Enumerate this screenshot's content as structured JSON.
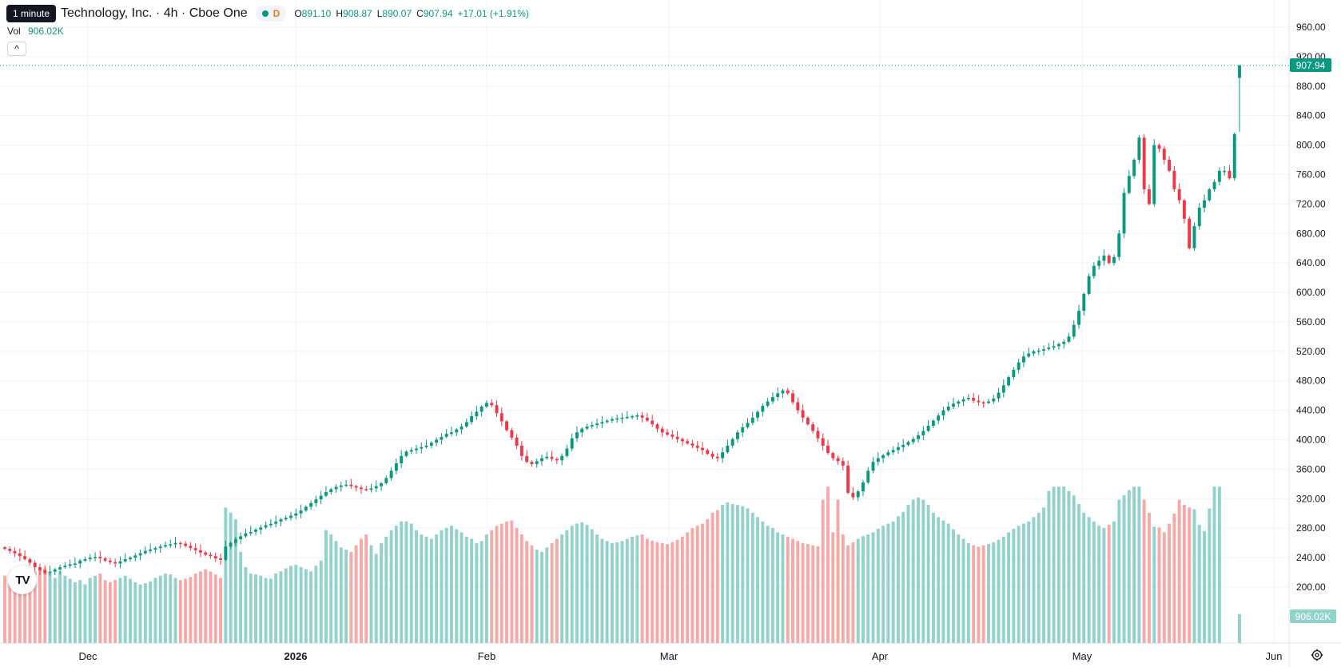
{
  "header": {
    "tooltip": "1 minute",
    "symbol_title": "Technology, Inc. · 4h · Cboe One",
    "delay_badge": "D",
    "ohlc": {
      "o_label": "O",
      "o_value": "891.10",
      "h_label": "H",
      "h_value": "908.87",
      "l_label": "L",
      "l_value": "890.07",
      "c_label": "C",
      "c_value": "907.94",
      "change": "+17.01 (+1.91%)"
    }
  },
  "volume_legend": {
    "label": "Vol",
    "value": "906.02K"
  },
  "buttons": {
    "collapse_glyph": "^"
  },
  "logo": {
    "text": "TV"
  },
  "icons": {
    "settings": "gear-icon",
    "collapse": "chevron-up-icon"
  },
  "chart_data": {
    "type": "candlestick",
    "price_axis": {
      "ticks": [
        "960.00",
        "920.00",
        "880.00",
        "840.00",
        "800.00",
        "760.00",
        "720.00",
        "680.00",
        "640.00",
        "600.00",
        "560.00",
        "520.00",
        "480.00",
        "440.00",
        "400.00",
        "360.00",
        "320.00",
        "280.00",
        "240.00",
        "200.00"
      ],
      "range": [
        190,
        985
      ]
    },
    "time_axis": {
      "labels": [
        "Dec",
        "2026",
        "Feb",
        "Mar",
        "Apr",
        "May",
        "Jun"
      ]
    },
    "last_price": {
      "value": 907.94,
      "label": "907.94"
    },
    "last_volume": {
      "label": "906.02K"
    },
    "colors": {
      "up": "#089981",
      "down": "#f23645",
      "up_volume": "#92d2cc",
      "down_volume": "#f7a9a7",
      "grid": "#f0f3fa",
      "price_line": "#089981"
    },
    "grid": true,
    "closes": [
      252,
      249,
      246,
      242,
      238,
      233,
      227,
      223,
      219,
      221,
      224,
      227,
      229,
      231,
      232,
      236,
      238,
      240,
      241,
      239,
      236,
      234,
      232,
      235,
      238,
      240,
      243,
      246,
      249,
      251,
      253,
      255,
      257,
      258,
      260,
      259,
      256,
      253,
      250,
      247,
      244,
      242,
      239,
      237,
      255,
      260,
      265,
      269,
      273,
      275,
      278,
      281,
      284,
      286,
      289,
      292,
      294,
      297,
      300,
      304,
      309,
      314,
      319,
      324,
      329,
      333,
      336,
      338,
      339,
      337,
      335,
      333,
      332,
      334,
      337,
      341,
      348,
      358,
      368,
      378,
      384,
      386,
      388,
      390,
      392,
      396,
      400,
      404,
      408,
      410,
      414,
      418,
      424,
      432,
      438,
      445,
      450,
      447,
      436,
      425,
      413,
      403,
      392,
      378,
      370,
      367,
      371,
      375,
      377,
      374,
      372,
      378,
      388,
      402,
      410,
      415,
      418,
      420,
      422,
      424,
      426,
      428,
      429,
      430,
      431,
      432,
      433,
      430,
      426,
      421,
      415,
      410,
      407,
      404,
      401,
      398,
      395,
      392,
      389,
      386,
      381,
      377,
      375,
      383,
      392,
      401,
      410,
      417,
      423,
      430,
      438,
      446,
      452,
      458,
      463,
      467,
      463,
      451,
      440,
      430,
      421,
      412,
      402,
      392,
      382,
      375,
      371,
      365,
      328,
      322,
      330,
      342,
      358,
      370,
      375,
      379,
      383,
      386,
      390,
      393,
      397,
      401,
      406,
      412,
      419,
      426,
      433,
      440,
      445,
      449,
      452,
      455,
      457,
      453,
      451,
      450,
      452,
      456,
      464,
      474,
      485,
      495,
      505,
      513,
      517,
      520,
      521,
      523,
      525,
      527,
      530,
      533,
      540,
      556,
      575,
      598,
      622,
      636,
      643,
      650,
      640,
      648,
      680,
      735,
      758,
      780,
      810,
      740,
      720,
      800,
      795,
      780,
      765,
      740,
      725,
      700,
      660,
      690,
      715,
      725,
      740,
      750,
      765,
      765,
      755,
      815,
      908
    ],
    "volumes": [
      155,
      150,
      148,
      145,
      140,
      150,
      165,
      170,
      172,
      160,
      150,
      165,
      155,
      148,
      140,
      145,
      135,
      150,
      155,
      160,
      145,
      140,
      145,
      150,
      155,
      148,
      140,
      135,
      138,
      142,
      150,
      155,
      160,
      158,
      150,
      145,
      148,
      152,
      160,
      165,
      170,
      165,
      158,
      150,
      312,
      300,
      285,
      210,
      175,
      160,
      158,
      155,
      150,
      148,
      160,
      165,
      172,
      178,
      180,
      175,
      170,
      165,
      178,
      190,
      260,
      250,
      235,
      220,
      215,
      210,
      225,
      240,
      250,
      225,
      205,
      230,
      245,
      260,
      270,
      280,
      280,
      275,
      260,
      250,
      245,
      240,
      250,
      260,
      265,
      270,
      262,
      255,
      245,
      240,
      230,
      235,
      250,
      260,
      270,
      275,
      280,
      282,
      265,
      250,
      235,
      225,
      215,
      210,
      220,
      230,
      240,
      250,
      260,
      270,
      275,
      278,
      272,
      262,
      250,
      240,
      235,
      230,
      232,
      235,
      240,
      245,
      248,
      250,
      240,
      236,
      232,
      230,
      228,
      232,
      238,
      245,
      255,
      265,
      270,
      275,
      285,
      300,
      306,
      318,
      324,
      320,
      318,
      315,
      310,
      300,
      290,
      280,
      270,
      265,
      255,
      250,
      245,
      240,
      235,
      230,
      228,
      225,
      223,
      330,
      420,
      255,
      330,
      250,
      225,
      232,
      240,
      246,
      250,
      255,
      263,
      270,
      275,
      280,
      292,
      302,
      318,
      330,
      335,
      330,
      318,
      300,
      290,
      282,
      275,
      262,
      250,
      240,
      230,
      225,
      222,
      225,
      228,
      232,
      238,
      245,
      255,
      263,
      270,
      275,
      280,
      290,
      300,
      312,
      350,
      380,
      372,
      360,
      350,
      340,
      320,
      300,
      290,
      280,
      270,
      265,
      272,
      280,
      330,
      340,
      352,
      372,
      382,
      330,
      300,
      268,
      266,
      255,
      275,
      298,
      330,
      318,
      312,
      308,
      272,
      258,
      310,
      395,
      906
    ]
  }
}
